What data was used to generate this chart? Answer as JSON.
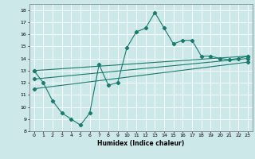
{
  "title": "",
  "xlabel": "Humidex (Indice chaleur)",
  "ylabel": "",
  "bg_color": "#cce8e8",
  "line_color": "#1a7a6e",
  "grid_color": "#ffffff",
  "xlim": [
    -0.5,
    23.5
  ],
  "ylim": [
    8,
    18.5
  ],
  "xticks": [
    0,
    1,
    2,
    3,
    4,
    5,
    6,
    7,
    8,
    9,
    10,
    11,
    12,
    13,
    14,
    15,
    16,
    17,
    18,
    19,
    20,
    21,
    22,
    23
  ],
  "yticks": [
    8,
    9,
    10,
    11,
    12,
    13,
    14,
    15,
    16,
    17,
    18
  ],
  "main_line": {
    "x": [
      0,
      1,
      2,
      3,
      4,
      5,
      6,
      7,
      8,
      9,
      10,
      11,
      12,
      13,
      14,
      15,
      16,
      17,
      18,
      19,
      20,
      21,
      22,
      23
    ],
    "y": [
      13,
      12,
      10.5,
      9.5,
      9,
      8.5,
      9.5,
      13.5,
      11.8,
      12.0,
      14.9,
      16.2,
      16.5,
      17.8,
      16.5,
      15.2,
      15.5,
      15.5,
      14.2,
      14.2,
      14.0,
      13.9,
      14.0,
      14.2
    ]
  },
  "line2": {
    "x": [
      0,
      23
    ],
    "y": [
      13.0,
      14.2
    ]
  },
  "line3": {
    "x": [
      0,
      23
    ],
    "y": [
      12.3,
      14.0
    ]
  },
  "line4": {
    "x": [
      0,
      23
    ],
    "y": [
      11.5,
      13.7
    ]
  }
}
